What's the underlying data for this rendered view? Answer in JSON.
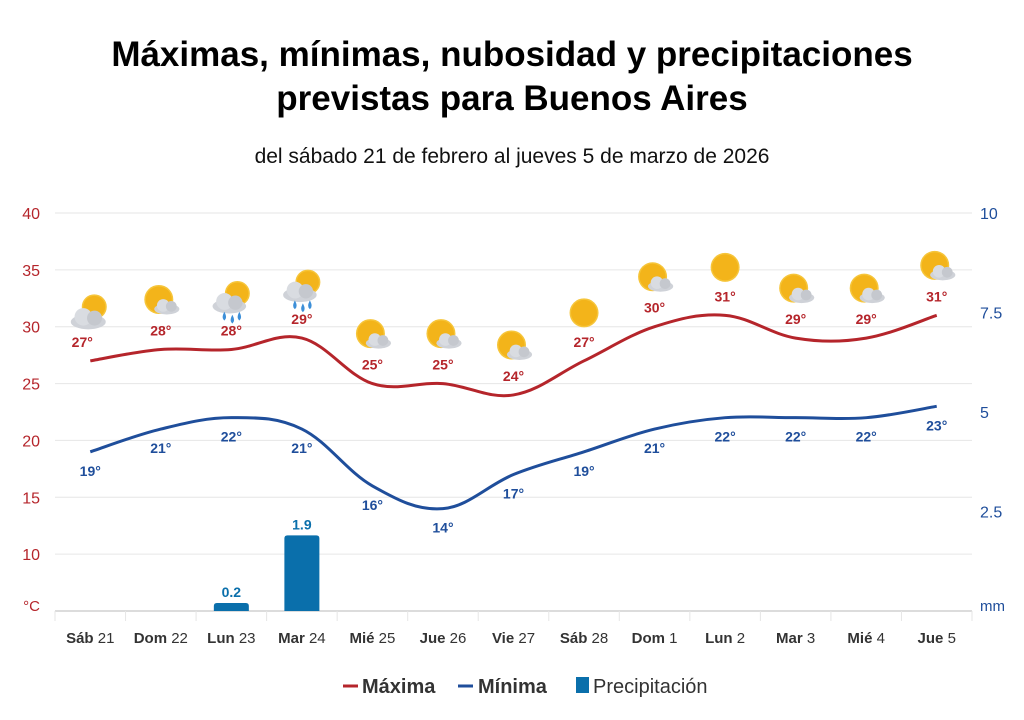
{
  "chart_data": {
    "type": "line",
    "title_line1": "Máximas, mínimas, nubosidad  y precipitaciones",
    "title_line2": "previstas para Buenos Aires",
    "subtitle": "del sábado 21 de febrero al jueves 5 de marzo de 2026",
    "categories": [
      {
        "bold": "Sáb",
        "num": "21"
      },
      {
        "bold": "Dom",
        "num": "22"
      },
      {
        "bold": "Lun",
        "num": "23"
      },
      {
        "bold": "Mar",
        "num": "24"
      },
      {
        "bold": "Mié",
        "num": "25"
      },
      {
        "bold": "Jue",
        "num": "26"
      },
      {
        "bold": "Vie",
        "num": "27"
      },
      {
        "bold": "Sáb",
        "num": "28"
      },
      {
        "bold": "Dom",
        "num": "1"
      },
      {
        "bold": "Lun",
        "num": "2"
      },
      {
        "bold": "Mar",
        "num": "3"
      },
      {
        "bold": "Mié",
        "num": "4"
      },
      {
        "bold": "Jue",
        "num": "5"
      }
    ],
    "series": [
      {
        "name": "Máxima",
        "color": "#b5252b",
        "axis": "left",
        "values": [
          27,
          28,
          28,
          29,
          25,
          25,
          24,
          27,
          30,
          31,
          29,
          29,
          31
        ],
        "labels": [
          "27°",
          "28°",
          "28°",
          "29°",
          "25°",
          "25°",
          "24°",
          "27°",
          "30°",
          "31°",
          "29°",
          "29°",
          "31°"
        ]
      },
      {
        "name": "Mínima",
        "color": "#1f4e9b",
        "axis": "left",
        "values": [
          19,
          21,
          22,
          21,
          16,
          14,
          17,
          19,
          21,
          22,
          22,
          22,
          23
        ],
        "labels": [
          "19°",
          "21°",
          "22°",
          "21°",
          "16°",
          "14°",
          "17°",
          "19°",
          "21°",
          "22°",
          "22°",
          "22°",
          "23°"
        ]
      },
      {
        "name": "Precipitación",
        "color": "#0a6fab",
        "axis": "right",
        "type": "bar",
        "values": [
          0,
          0,
          0.2,
          1.9,
          0,
          0,
          0,
          0,
          0,
          0,
          0,
          0,
          0
        ],
        "labels": [
          "",
          "",
          "0.2",
          "1.9",
          "",
          "",
          "",
          "",
          "",
          "",
          "",
          "",
          ""
        ]
      }
    ],
    "cloud_icons": [
      "partly-cloudy-icon",
      "sun-cloud-icon",
      "rain-icon",
      "rain-icon",
      "sun-cloud-icon",
      "sun-cloud-icon",
      "sun-cloud-icon",
      "sun-icon",
      "sun-cloud-icon",
      "sun-icon",
      "sun-cloud-icon",
      "sun-cloud-icon",
      "sun-cloud-icon"
    ],
    "left_axis": {
      "unit": "°C",
      "ylim": [
        5,
        40
      ],
      "ticks": [
        "10",
        "15",
        "20",
        "25",
        "30",
        "35",
        "40"
      ],
      "color": "#b5252b"
    },
    "right_axis": {
      "unit": "mm",
      "ylim": [
        0,
        10
      ],
      "ticks": [
        "2.5",
        "5",
        "7.5",
        "10"
      ],
      "color": "#1f4e9b"
    },
    "grid": true,
    "legend_position": "bottom"
  }
}
